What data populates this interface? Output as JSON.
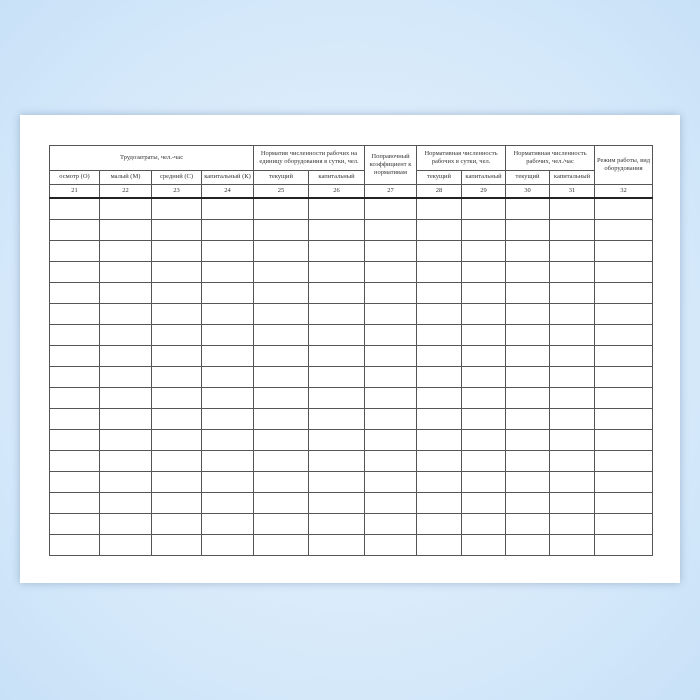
{
  "header": {
    "labor": "Трудозатраты, чел.-час",
    "norm_per_unit": "Норматив численности рабочих на единицу оборудования в сутки, чел.",
    "correction": "Поправочный коэффициент к нормативам",
    "norm_day": "Нормативная численность рабочих в сутки, чел.",
    "norm_hour": "Нормативная численность рабочих, чел./час",
    "mode": "Режим работы, вид оборудования",
    "sub": [
      "осмотр (О)",
      "малый (М)",
      "средний (С)",
      "капитальный (К)",
      "текущий",
      "капитальный",
      "текущий",
      "капитальный",
      "текущий",
      "капитальный"
    ]
  },
  "column_numbers": [
    "21",
    "22",
    "23",
    "24",
    "25",
    "26",
    "27",
    "28",
    "29",
    "30",
    "31",
    "32"
  ],
  "empty_rows": 17
}
